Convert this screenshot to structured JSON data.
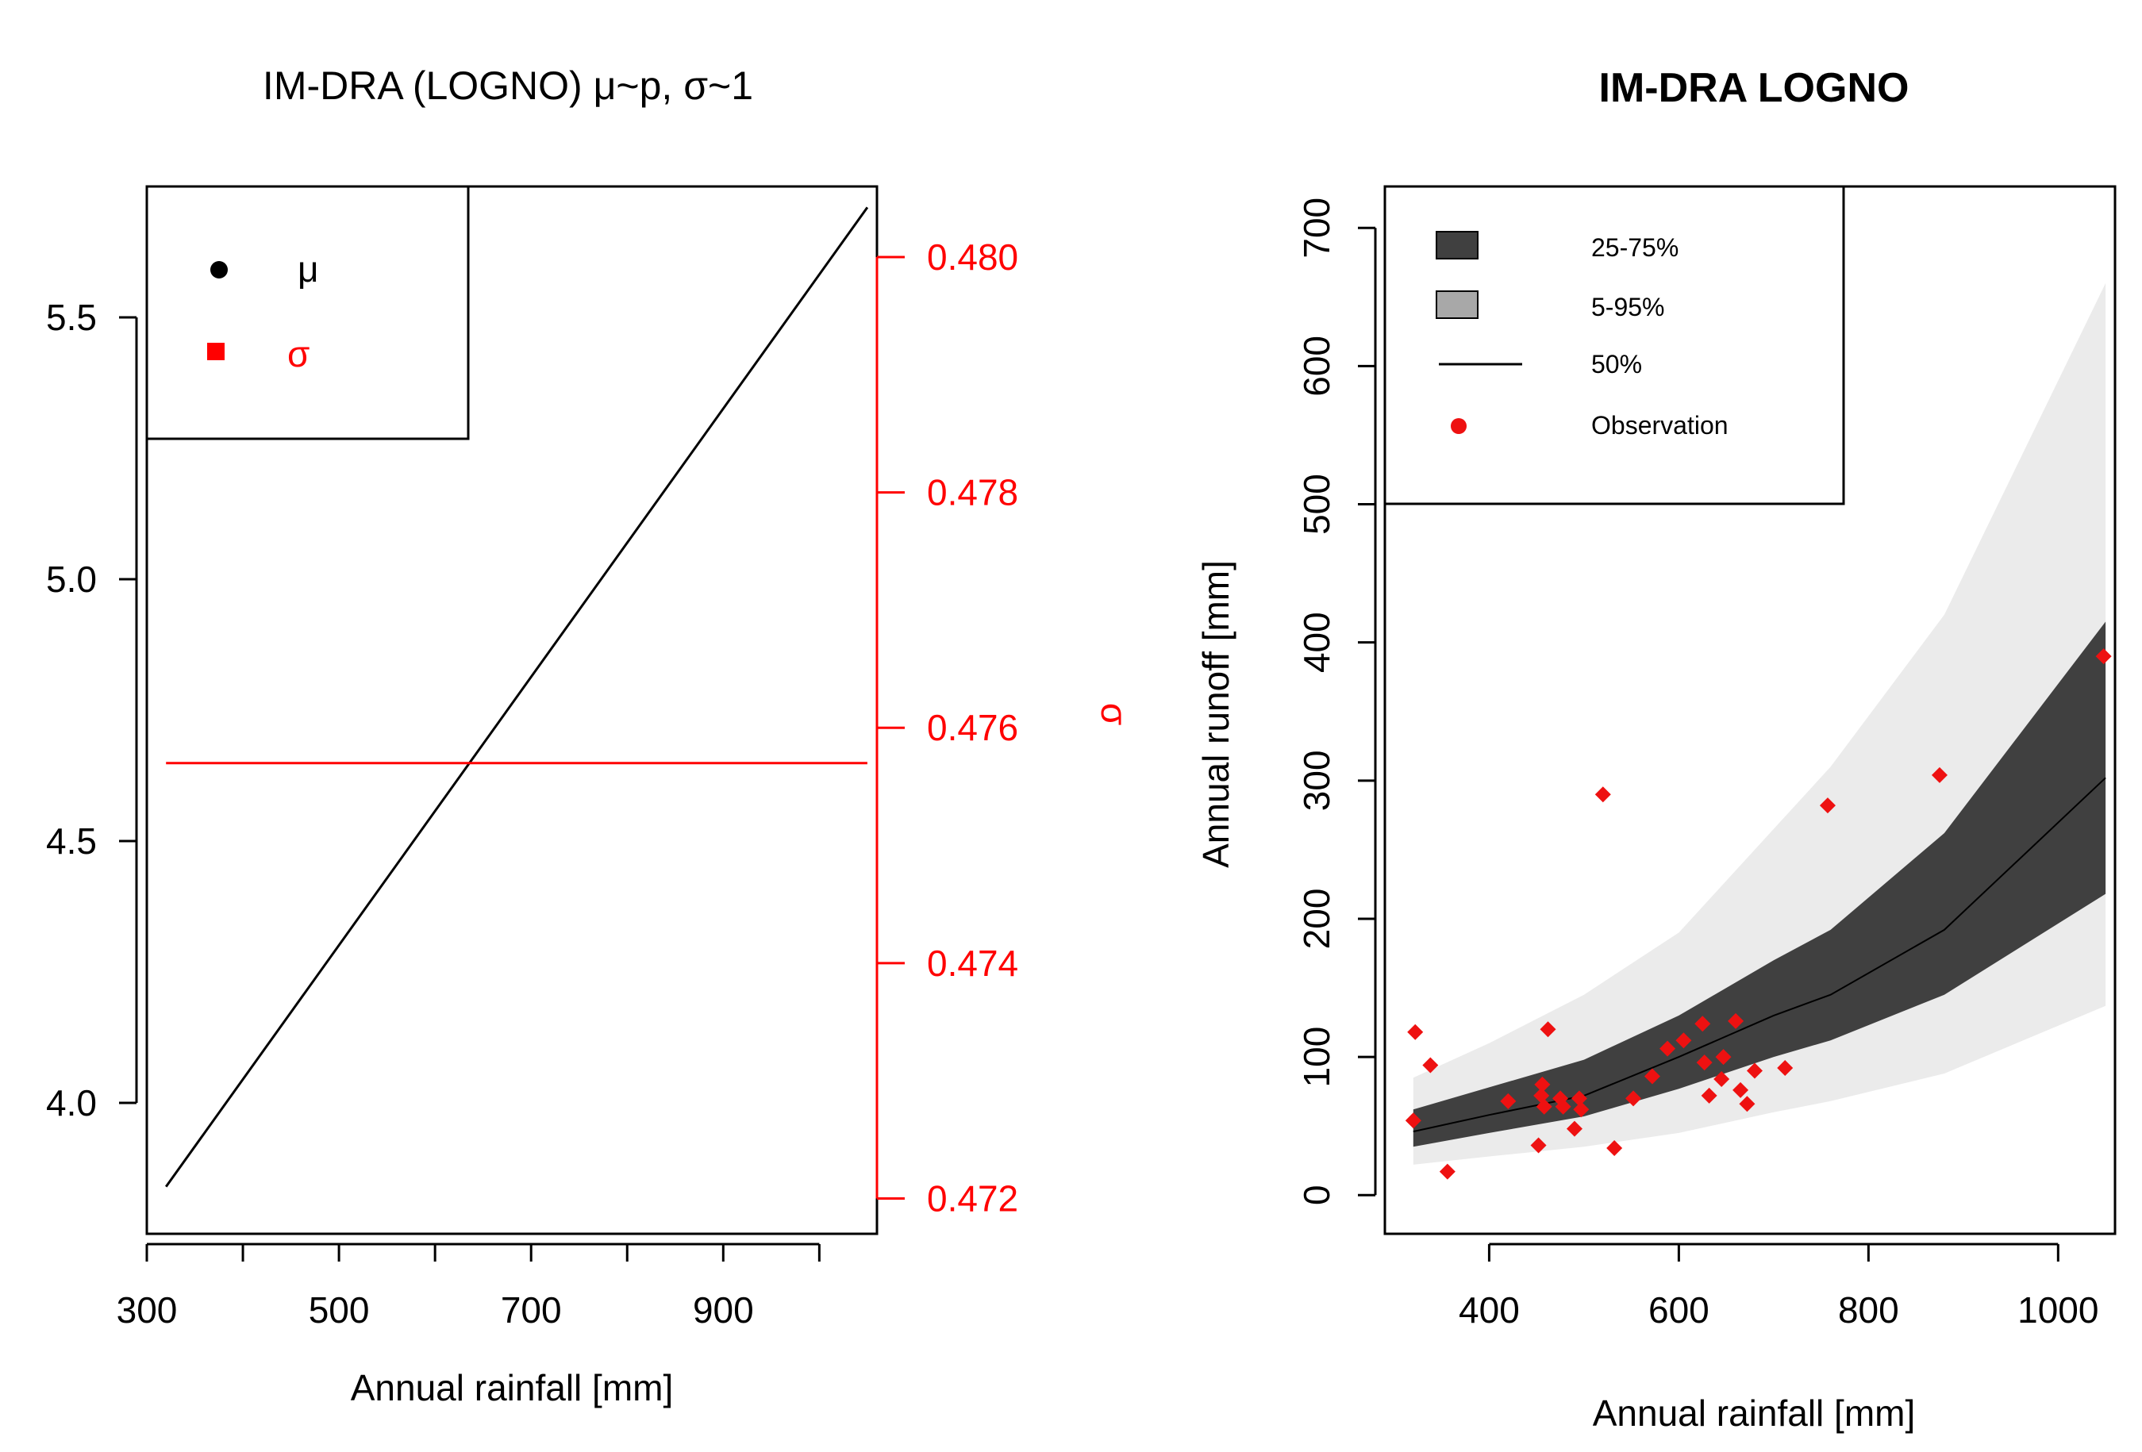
{
  "chart_data": [
    {
      "type": "line",
      "title": "IM-DRA (LOGNO) μ~p, σ~1",
      "xlabel": "Annual rainfall [mm]",
      "ylabel": "",
      "y2label": "σ",
      "xlim": [
        300,
        1060
      ],
      "ylim": [
        3.75,
        5.75
      ],
      "y2lim": [
        0.4717,
        0.4806
      ],
      "x_ticks": [
        300,
        400,
        500,
        600,
        700,
        800,
        900,
        1000
      ],
      "x_tick_labels": [
        "300",
        "500",
        "700",
        "900"
      ],
      "y_ticks": [
        "4.0",
        "4.5",
        "5.0",
        "5.5"
      ],
      "y2_ticks": [
        "0.472",
        "0.474",
        "0.476",
        "0.478",
        "0.480"
      ],
      "legend": {
        "placement": "top-left",
        "items": [
          {
            "label": "μ",
            "color": "#000000",
            "marker": "circle"
          },
          {
            "label": "σ",
            "color": "#ff0000",
            "marker": "square"
          }
        ]
      },
      "series": [
        {
          "name": "μ",
          "axis": "left",
          "color": "#000000",
          "x": [
            320,
            1050
          ],
          "y": [
            3.84,
            5.71
          ]
        },
        {
          "name": "σ",
          "axis": "right",
          "color": "#ff0000",
          "x": [
            320,
            1050
          ],
          "y": [
            0.4757,
            0.4757
          ]
        }
      ]
    },
    {
      "type": "area",
      "title": "IM-DRA LOGNO",
      "xlabel": "Annual rainfall [mm]",
      "ylabel": "Annual runoff [mm]",
      "xlim": [
        290,
        1060
      ],
      "ylim": [
        -28,
        730
      ],
      "x_ticks": [
        "400",
        "600",
        "800",
        "1000"
      ],
      "y_ticks": [
        "0",
        "100",
        "200",
        "300",
        "400",
        "500",
        "600",
        "700"
      ],
      "legend": {
        "placement": "top-left",
        "items": [
          {
            "label": "25-75%",
            "color": "#404040",
            "marker": "box"
          },
          {
            "label": "5-95%",
            "color": "#a8a8a8",
            "marker": "box"
          },
          {
            "label": "50%",
            "color": "#000000",
            "marker": "line"
          },
          {
            "label": "Observation",
            "color": "#ee1111",
            "marker": "point"
          }
        ]
      },
      "bands": {
        "x": [
          320,
          400,
          500,
          600,
          700,
          760,
          880,
          1050
        ],
        "p5": [
          22,
          28,
          35,
          45,
          60,
          68,
          88,
          137
        ],
        "p25": [
          35,
          45,
          57,
          77,
          100,
          112,
          145,
          218
        ],
        "p50": [
          46,
          58,
          72,
          100,
          130,
          145,
          192,
          302
        ],
        "p75": [
          62,
          78,
          98,
          130,
          170,
          192,
          262,
          415
        ],
        "p95": [
          85,
          110,
          145,
          190,
          265,
          310,
          420,
          660
        ]
      },
      "observations": {
        "x": [
          320,
          322,
          338,
          356,
          420,
          452,
          455,
          456,
          458,
          462,
          475,
          478,
          490,
          495,
          497,
          520,
          532,
          552,
          572,
          588,
          605,
          625,
          627,
          632,
          645,
          647,
          660,
          665,
          672,
          680,
          712,
          757,
          875,
          1048
        ],
        "y": [
          54,
          118,
          94,
          17,
          68,
          36,
          72,
          80,
          64,
          120,
          70,
          64,
          48,
          70,
          62,
          290,
          34,
          70,
          86,
          106,
          112,
          124,
          96,
          72,
          84,
          100,
          126,
          76,
          66,
          90,
          92,
          282,
          304,
          390
        ]
      }
    }
  ]
}
